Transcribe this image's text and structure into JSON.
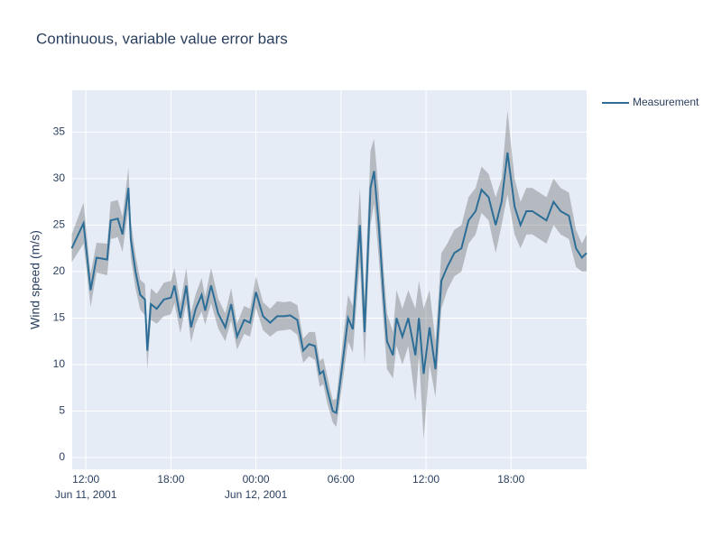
{
  "chart_data": {
    "type": "line",
    "title": "Continuous, variable value error bars",
    "y_label": "Wind speed (m/s)",
    "x": [
      "2001-06-11 11:00",
      "2001-06-11 11:50",
      "2001-06-11 12:20",
      "2001-06-11 12:45",
      "2001-06-11 13:30",
      "2001-06-11 13:45",
      "2001-06-11 14:15",
      "2001-06-11 14:35",
      "2001-06-11 15:00",
      "2001-06-11 15:10",
      "2001-06-11 15:30",
      "2001-06-11 15:50",
      "2001-06-11 16:10",
      "2001-06-11 16:20",
      "2001-06-11 16:35",
      "2001-06-11 17:00",
      "2001-06-11 17:30",
      "2001-06-11 18:00",
      "2001-06-11 18:15",
      "2001-06-11 18:40",
      "2001-06-11 19:05",
      "2001-06-11 19:25",
      "2001-06-11 19:45",
      "2001-06-11 20:10",
      "2001-06-11 20:25",
      "2001-06-11 20:50",
      "2001-06-11 21:20",
      "2001-06-11 21:50",
      "2001-06-11 22:15",
      "2001-06-11 22:40",
      "2001-06-11 23:10",
      "2001-06-11 23:35",
      "2001-06-12 00:00",
      "2001-06-12 00:30",
      "2001-06-12 01:00",
      "2001-06-12 01:30",
      "2001-06-12 02:00",
      "2001-06-12 02:25",
      "2001-06-12 02:55",
      "2001-06-12 03:20",
      "2001-06-12 03:45",
      "2001-06-12 04:10",
      "2001-06-12 04:30",
      "2001-06-12 04:45",
      "2001-06-12 05:00",
      "2001-06-12 05:25",
      "2001-06-12 05:40",
      "2001-06-12 06:00",
      "2001-06-12 06:30",
      "2001-06-12 06:50",
      "2001-06-12 07:20",
      "2001-06-12 07:30",
      "2001-06-12 07:40",
      "2001-06-12 08:05",
      "2001-06-12 08:20",
      "2001-06-12 08:40",
      "2001-06-12 09:00",
      "2001-06-12 09:15",
      "2001-06-12 09:40",
      "2001-06-12 09:55",
      "2001-06-12 10:20",
      "2001-06-12 10:45",
      "2001-06-12 11:15",
      "2001-06-12 11:30",
      "2001-06-12 11:50",
      "2001-06-12 12:15",
      "2001-06-12 12:40",
      "2001-06-12 13:05",
      "2001-06-12 13:30",
      "2001-06-12 14:00",
      "2001-06-12 14:30",
      "2001-06-12 15:00",
      "2001-06-12 15:30",
      "2001-06-12 15:55",
      "2001-06-12 16:25",
      "2001-06-12 16:55",
      "2001-06-12 17:20",
      "2001-06-12 17:45",
      "2001-06-12 18:15",
      "2001-06-12 18:40",
      "2001-06-12 19:05",
      "2001-06-12 19:30",
      "2001-06-12 20:00",
      "2001-06-12 20:30",
      "2001-06-12 21:00",
      "2001-06-12 21:30",
      "2001-06-12 22:05",
      "2001-06-12 22:35",
      "2001-06-12 23:00",
      "2001-06-12 23:20"
    ],
    "series": [
      {
        "name": "Measurement",
        "color": "#2c6e97",
        "band_color": "rgba(68,68,68,0.3)",
        "values": [
          22.5,
          25.2,
          18,
          21.5,
          21.3,
          25.5,
          25.7,
          24,
          29,
          23.5,
          20,
          17.5,
          17,
          11.5,
          16.5,
          16,
          17,
          17.2,
          18.5,
          15,
          18.5,
          14,
          16,
          17.5,
          15.8,
          18.5,
          15.5,
          14,
          16.5,
          13,
          14.8,
          14.5,
          17.8,
          15.2,
          14.5,
          15.2,
          15.2,
          15.3,
          14.8,
          11.5,
          12.2,
          12,
          9,
          9.3,
          7.5,
          5,
          4.8,
          8.8,
          15,
          13.8,
          25,
          19.5,
          13.5,
          29,
          30.8,
          25,
          17.5,
          12.5,
          11,
          15,
          13,
          15,
          11,
          15,
          9,
          14,
          9.5,
          19,
          20.5,
          22,
          22.5,
          25.5,
          26.5,
          28.8,
          28,
          25,
          27.5,
          32.8,
          27,
          25,
          26.5,
          26.5,
          26,
          25.5,
          27.5,
          26.5,
          26,
          22.5,
          21.5,
          22
        ],
        "errors": [
          1.5,
          2.2,
          1.8,
          1.6,
          1.7,
          2,
          2,
          1.9,
          2.2,
          2,
          1.8,
          1.6,
          1.7,
          2,
          1.7,
          1.6,
          1.8,
          1.8,
          1.9,
          1.6,
          1.9,
          1.6,
          1.6,
          1.8,
          1.5,
          1.9,
          1.6,
          1.5,
          1.7,
          1.4,
          1.5,
          1.5,
          1.7,
          1.5,
          1.5,
          1.6,
          1.5,
          1.5,
          1.6,
          1.3,
          1.3,
          1.5,
          1.4,
          1.4,
          1.5,
          1.2,
          1.5,
          2,
          2.5,
          2.5,
          4,
          4,
          3.5,
          4,
          3.5,
          3.5,
          3,
          3,
          2.5,
          3,
          3,
          3,
          5,
          4,
          7,
          4,
          3,
          3,
          2.5,
          2.5,
          2.5,
          2.5,
          2.5,
          2.5,
          2.5,
          3,
          2.5,
          4.5,
          3,
          2.5,
          2.5,
          2.5,
          2.5,
          2.5,
          2.5,
          2.5,
          2.5,
          2,
          1.5,
          2
        ]
      }
    ],
    "xlim": [
      "2001-06-11 11:02",
      "2001-06-12 23:20"
    ],
    "xticks": [
      {
        "value": "2001-06-11 12:00",
        "label": "12:00\nJun 11, 2001"
      },
      {
        "value": "2001-06-11 18:00",
        "label": "18:00"
      },
      {
        "value": "2001-06-12 00:00",
        "label": "00:00\nJun 12, 2001"
      },
      {
        "value": "2001-06-12 06:00",
        "label": "06:00"
      },
      {
        "value": "2001-06-12 12:00",
        "label": "12:00"
      },
      {
        "value": "2001-06-12 18:00",
        "label": "18:00"
      }
    ],
    "ylim": [
      -1.26,
      39.5
    ],
    "yticks": [
      0,
      5,
      10,
      15,
      20,
      25,
      30,
      35
    ],
    "grid": true,
    "legend": "right",
    "plot_bg": "#e5ecf6"
  }
}
